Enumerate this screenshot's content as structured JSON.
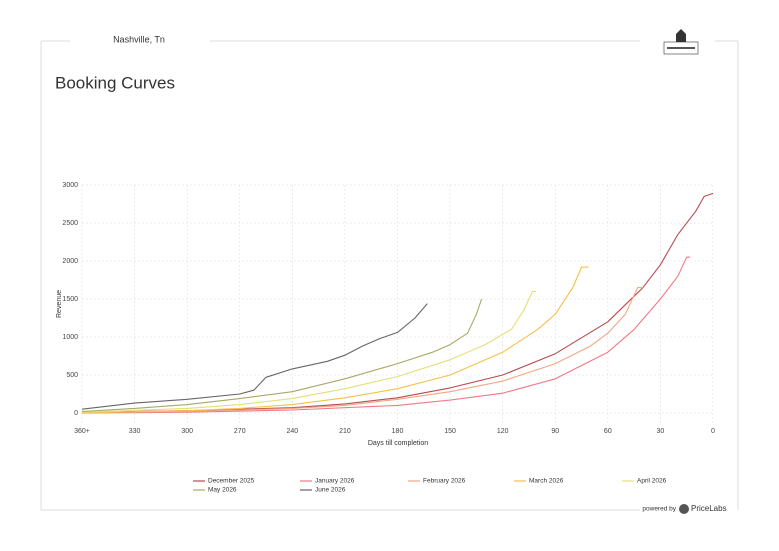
{
  "header": {
    "location": "Nashville, Tn"
  },
  "footer": {
    "powered_by": "powered by",
    "brand": "PriceLabs"
  },
  "chart_data": {
    "type": "line",
    "title": "Booking Curves",
    "x_label": "Days till completion",
    "y_label": "Revenue",
    "xlim": [
      360,
      0
    ],
    "ylim": [
      -150,
      3000
    ],
    "xticks": [
      {
        "value": 360,
        "label": "360+"
      },
      330,
      300,
      270,
      240,
      210,
      180,
      150,
      120,
      90,
      60,
      30,
      0
    ],
    "yticks": [
      0,
      500,
      1000,
      1500,
      2000,
      2500,
      3000
    ],
    "grid": true,
    "series": [
      {
        "name": "December 2025",
        "color": "#b94a4f",
        "x": [
          360,
          300,
          240,
          210,
          180,
          150,
          120,
          90,
          60,
          40,
          30,
          20,
          10,
          5,
          0
        ],
        "values": [
          10,
          30,
          70,
          120,
          200,
          330,
          500,
          780,
          1200,
          1650,
          1950,
          2350,
          2650,
          2850,
          2890
        ]
      },
      {
        "name": "January 2026",
        "color": "#f07a86",
        "x": [
          360,
          300,
          240,
          180,
          150,
          120,
          90,
          60,
          45,
          30,
          20,
          15,
          13
        ],
        "values": [
          0,
          10,
          40,
          100,
          170,
          260,
          450,
          800,
          1100,
          1500,
          1800,
          2050,
          2050
        ]
      },
      {
        "name": "February 2026",
        "color": "#f4a582",
        "x": [
          360,
          300,
          240,
          210,
          180,
          150,
          120,
          90,
          70,
          60,
          50,
          43,
          40
        ],
        "values": [
          5,
          20,
          60,
          100,
          180,
          280,
          420,
          650,
          880,
          1050,
          1300,
          1650,
          1650
        ]
      },
      {
        "name": "March 2026",
        "color": "#f7c04a",
        "x": [
          360,
          300,
          270,
          240,
          210,
          180,
          150,
          120,
          100,
          90,
          80,
          75,
          71
        ],
        "values": [
          5,
          30,
          60,
          110,
          200,
          320,
          500,
          800,
          1100,
          1300,
          1650,
          1920,
          1920
        ]
      },
      {
        "name": "April 2026",
        "color": "#e3df7a",
        "x": [
          360,
          300,
          270,
          240,
          210,
          180,
          150,
          130,
          115,
          108,
          103,
          101
        ],
        "values": [
          10,
          60,
          110,
          190,
          320,
          480,
          700,
          900,
          1100,
          1350,
          1600,
          1600
        ]
      },
      {
        "name": "May 2026",
        "color": "#a8a868",
        "x": [
          360,
          330,
          300,
          270,
          240,
          210,
          180,
          160,
          150,
          140,
          135,
          132
        ],
        "values": [
          20,
          60,
          110,
          190,
          280,
          450,
          650,
          800,
          900,
          1050,
          1300,
          1500
        ]
      },
      {
        "name": "June 2026",
        "color": "#666666",
        "x": [
          360,
          330,
          300,
          270,
          262,
          255,
          240,
          220,
          210,
          200,
          190,
          180,
          170,
          163
        ],
        "values": [
          50,
          130,
          180,
          250,
          300,
          470,
          580,
          680,
          760,
          880,
          980,
          1060,
          1250,
          1440
        ]
      }
    ]
  }
}
